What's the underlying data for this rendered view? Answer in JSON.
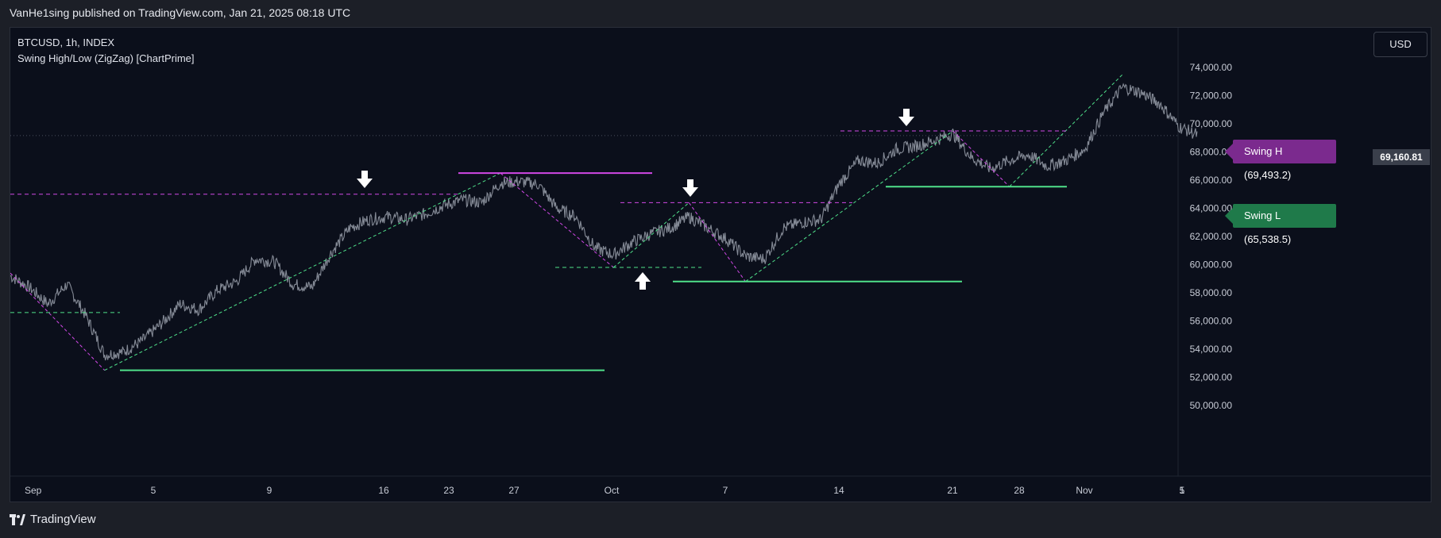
{
  "publisher_line": "VanHe1sing published on TradingView.com, Jan 21, 2025 08:18 UTC",
  "symbol_line": "BTCUSD, 1h, INDEX",
  "indicator_line": "Swing High/Low (ZigZag) [ChartPrime]",
  "currency_button": "USD",
  "brand": "TradingView",
  "swing_high_label": "Swing H  (69,493.2)",
  "swing_low_label": "Swing L  (65,538.5)",
  "last_price_label": "69,160.81",
  "colors": {
    "background": "#0b0f1b",
    "candles": "#9aa0ab",
    "swing_high": "#d148e6",
    "swing_low": "#4fe08a",
    "zigzag_high_tag": "#7b2a8e",
    "zigzag_low_tag": "#1f7a4a",
    "arrows": "#ffffff"
  },
  "chart_data": {
    "type": "line",
    "title": "BTCUSD, 1h, INDEX",
    "ylim": [
      49000,
      75000
    ],
    "y_ticks": [
      "74,000.00",
      "72,000.00",
      "70,000.00",
      "68,000.00",
      "66,000.00",
      "64,000.00",
      "62,000.00",
      "60,000.00",
      "58,000.00",
      "56,000.00",
      "54,000.00",
      "52,000.00",
      "50,000.00"
    ],
    "x_ticks": [
      "Sep",
      "5",
      "9",
      "16",
      "23",
      "27",
      "Oct",
      "7",
      "14",
      "21",
      "28",
      "Nov",
      "5",
      "1"
    ],
    "series": [
      {
        "values_points": [
          [
            "Sep 1",
            59200
          ],
          [
            "Sep 2",
            58400
          ],
          [
            "Sep 3",
            57200
          ],
          [
            "Sep 4",
            58600
          ],
          [
            "Sep 5",
            56400
          ],
          [
            "Sep 6",
            53600
          ],
          [
            "Sep 7",
            53800
          ],
          [
            "Sep 8",
            54600
          ],
          [
            "Sep 9",
            55800
          ],
          [
            "Sep 10",
            57200
          ],
          [
            "Sep 11",
            56800
          ],
          [
            "Sep 12",
            58200
          ],
          [
            "Sep 13",
            58800
          ],
          [
            "Sep 14",
            60400
          ],
          [
            "Sep 15",
            60200
          ],
          [
            "Sep 16",
            58600
          ],
          [
            "Sep 17",
            58400
          ],
          [
            "Sep 18",
            60800
          ],
          [
            "Sep 19",
            62600
          ],
          [
            "Sep 20",
            63200
          ],
          [
            "Sep 21",
            63400
          ],
          [
            "Sep 22",
            63200
          ],
          [
            "Sep 23",
            63600
          ],
          [
            "Sep 24",
            64200
          ],
          [
            "Sep 25",
            64600
          ],
          [
            "Sep 26",
            64400
          ],
          [
            "Sep 27",
            65800
          ],
          [
            "Sep 28",
            65900
          ],
          [
            "Sep 29",
            65700
          ],
          [
            "Sep 30",
            64000
          ],
          [
            "Oct 1",
            63400
          ],
          [
            "Oct 2",
            61200
          ],
          [
            "Oct 3",
            60700
          ],
          [
            "Oct 4",
            61600
          ],
          [
            "Oct 5",
            62200
          ],
          [
            "Oct 6",
            62600
          ],
          [
            "Oct 7",
            63400
          ],
          [
            "Oct 8",
            62600
          ],
          [
            "Oct 9",
            61800
          ],
          [
            "Oct 10",
            60600
          ],
          [
            "Oct 11",
            60400
          ],
          [
            "Oct 12",
            62600
          ],
          [
            "Oct 13",
            63000
          ],
          [
            "Oct 14",
            63200
          ],
          [
            "Oct 15",
            65800
          ],
          [
            "Oct 16",
            67400
          ],
          [
            "Oct 17",
            67200
          ],
          [
            "Oct 18",
            68200
          ],
          [
            "Oct 19",
            68400
          ],
          [
            "Oct 20",
            68800
          ],
          [
            "Oct 21",
            69300
          ],
          [
            "Oct 22",
            67600
          ],
          [
            "Oct 23",
            66800
          ],
          [
            "Oct 24",
            67400
          ],
          [
            "Oct 25",
            67800
          ],
          [
            "Oct 26",
            67000
          ],
          [
            "Oct 27",
            67400
          ],
          [
            "Oct 28",
            68200
          ],
          [
            "Oct 29",
            70800
          ],
          [
            "Oct 30",
            72600
          ],
          [
            "Oct 31",
            72200
          ],
          [
            "Nov 1",
            71400
          ],
          [
            "Nov 2",
            69800
          ],
          [
            "Nov 3",
            69200
          ]
        ]
      }
    ],
    "swing_levels": [
      {
        "kind": "high",
        "value": 66500,
        "style": "solid"
      },
      {
        "kind": "high",
        "value": 65000,
        "style": "dashed"
      },
      {
        "kind": "high",
        "value": 64400,
        "style": "dashed"
      },
      {
        "kind": "high",
        "value": 69493.2,
        "style": "dashed"
      },
      {
        "kind": "low",
        "value": 52500,
        "style": "solid"
      },
      {
        "kind": "low",
        "value": 56600,
        "style": "dashed"
      },
      {
        "kind": "low",
        "value": 59800,
        "style": "dashed"
      },
      {
        "kind": "low",
        "value": 58800,
        "style": "solid"
      },
      {
        "kind": "low",
        "value": 65538.5,
        "style": "solid"
      }
    ]
  }
}
